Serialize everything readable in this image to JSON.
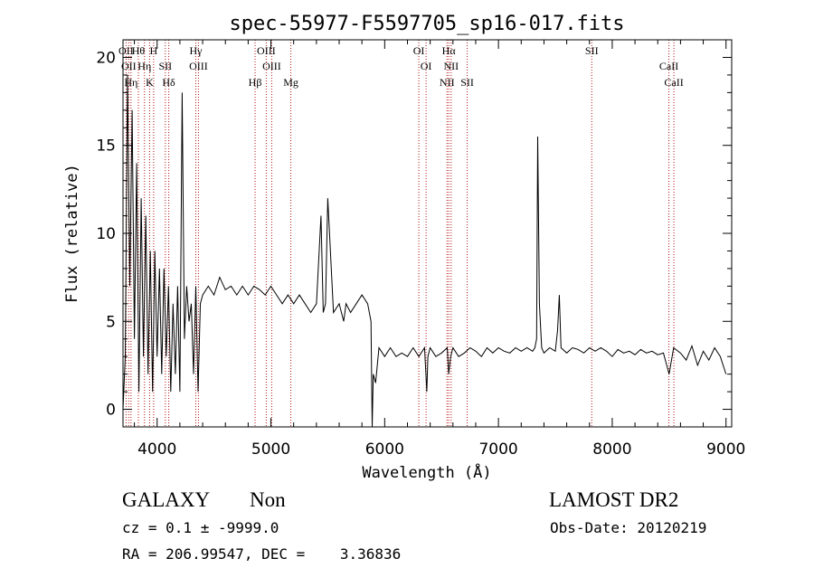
{
  "chart_data": {
    "type": "line",
    "title": "spec-55977-F5597705_sp16-017.fits",
    "xlabel": "Wavelength (Å)",
    "ylabel": "Flux (relative)",
    "xlim": [
      3700,
      9050
    ],
    "ylim": [
      -1,
      21
    ],
    "xticks": [
      4000,
      5000,
      6000,
      7000,
      8000,
      9000
    ],
    "yticks": [
      0,
      5,
      10,
      15,
      20
    ],
    "grid": false,
    "series": [
      {
        "x": [
          3700,
          3720,
          3740,
          3760,
          3780,
          3800,
          3820,
          3840,
          3860,
          3880,
          3900,
          3920,
          3940,
          3960,
          3980,
          4000,
          4020,
          4040,
          4060,
          4080,
          4100,
          4120,
          4140,
          4160,
          4180,
          4200,
          4220,
          4240,
          4260,
          4280,
          4300,
          4320,
          4340,
          4360,
          4380,
          4400,
          4450,
          4500,
          4550,
          4600,
          4650,
          4700,
          4750,
          4800,
          4850,
          4900,
          4950,
          5000,
          5050,
          5100,
          5150,
          5200,
          5250,
          5300,
          5350,
          5400,
          5440,
          5460,
          5480,
          5500,
          5550,
          5600,
          5620,
          5640,
          5660,
          5700,
          5750,
          5800,
          5850,
          5880,
          5890,
          5900,
          5920,
          5950,
          6000,
          6050,
          6100,
          6150,
          6200,
          6250,
          6300,
          6350,
          6370,
          6380,
          6400,
          6450,
          6500,
          6550,
          6563,
          6580,
          6600,
          6650,
          6700,
          6750,
          6800,
          6850,
          6900,
          6950,
          7000,
          7050,
          7100,
          7150,
          7200,
          7250,
          7300,
          7320,
          7335,
          7345,
          7360,
          7380,
          7400,
          7450,
          7500,
          7520,
          7535,
          7550,
          7600,
          7650,
          7700,
          7750,
          7800,
          7850,
          7900,
          7950,
          8000,
          8050,
          8100,
          8150,
          8200,
          8250,
          8300,
          8350,
          8400,
          8450,
          8500,
          8540,
          8600,
          8650,
          8700,
          8750,
          8800,
          8850,
          8900,
          8950,
          9000
        ],
        "y": [
          0,
          3,
          19,
          7,
          17,
          4,
          14,
          1,
          12,
          3,
          11,
          2,
          9,
          1,
          9,
          3,
          8,
          2,
          8,
          3,
          7,
          1,
          6,
          2,
          7,
          1,
          18,
          4,
          7,
          5,
          6,
          2,
          7,
          1,
          6,
          6.5,
          7,
          6.5,
          7.5,
          6.8,
          7,
          6.5,
          7,
          6.5,
          7,
          6.8,
          6.5,
          7,
          6.5,
          6,
          6.5,
          6,
          6.5,
          6,
          5.5,
          6,
          11,
          5.5,
          6,
          12,
          5.5,
          6,
          5.5,
          5,
          6,
          5.5,
          6,
          6.5,
          6,
          5,
          -1,
          2,
          1.5,
          3.5,
          3,
          3.5,
          3,
          3.2,
          3,
          3.5,
          3,
          3.5,
          1,
          3,
          3.5,
          3,
          3.2,
          3.5,
          2,
          3,
          3.5,
          3,
          3.2,
          3.5,
          3.3,
          3,
          3.5,
          3.2,
          3.5,
          3.3,
          3.2,
          3.5,
          3.3,
          3.5,
          3.3,
          3.5,
          4,
          15.5,
          6,
          3.5,
          3.2,
          3.5,
          3.3,
          4.5,
          6.5,
          3.5,
          3.2,
          3.5,
          3.4,
          3.2,
          3.5,
          3.3,
          3.5,
          3.3,
          3,
          3.4,
          3.2,
          3.3,
          3.1,
          3.4,
          3.2,
          3.3,
          3.1,
          3.2,
          2,
          3.5,
          3.2,
          2.8,
          3.6,
          2.5,
          3.3,
          2.8,
          3.5,
          3,
          2
        ]
      }
    ],
    "lines": [
      {
        "wavelength": 3727,
        "labels": [
          "OII"
        ]
      },
      {
        "wavelength": 3750,
        "labels": [
          "OII"
        ]
      },
      {
        "wavelength": 3770,
        "labels": [
          "Hη"
        ]
      },
      {
        "wavelength": 3835,
        "labels": [
          "Hθ"
        ]
      },
      {
        "wavelength": 3889,
        "labels": [
          "Hη"
        ]
      },
      {
        "wavelength": 3934,
        "labels": [
          "K"
        ]
      },
      {
        "wavelength": 3969,
        "labels": [
          "H"
        ]
      },
      {
        "wavelength": 4072,
        "labels": [
          "SII"
        ]
      },
      {
        "wavelength": 4102,
        "labels": [
          "Hδ"
        ]
      },
      {
        "wavelength": 4340,
        "labels": [
          "Hγ"
        ]
      },
      {
        "wavelength": 4363,
        "labels": [
          "OIII"
        ]
      },
      {
        "wavelength": 4861,
        "labels": [
          "Hβ"
        ]
      },
      {
        "wavelength": 4959,
        "labels": [
          "OIII"
        ]
      },
      {
        "wavelength": 5007,
        "labels": [
          "OIII"
        ]
      },
      {
        "wavelength": 5175,
        "labels": [
          "Mg"
        ]
      },
      {
        "wavelength": 6300,
        "labels": [
          "OI"
        ]
      },
      {
        "wavelength": 6364,
        "labels": [
          "OI"
        ]
      },
      {
        "wavelength": 6548,
        "labels": [
          "NII"
        ]
      },
      {
        "wavelength": 6563,
        "labels": [
          "Hα"
        ]
      },
      {
        "wavelength": 6584,
        "labels": [
          "NII"
        ]
      },
      {
        "wavelength": 6725,
        "labels": [
          "SII"
        ]
      },
      {
        "wavelength": 7820,
        "labels": [
          "SII"
        ]
      },
      {
        "wavelength": 8498,
        "labels": [
          "CaII"
        ]
      },
      {
        "wavelength": 8542,
        "labels": [
          "CaII"
        ]
      }
    ]
  },
  "footer": {
    "object_class": "GALAXY",
    "subclass": "Non",
    "survey": "LAMOST DR2",
    "cz": "cz = 0.1 ± -9999.0",
    "obs_date": "Obs-Date: 20120219",
    "radec": "RA = 206.99547, DEC =    3.36836"
  },
  "colors": {
    "line_marker": "#b01010",
    "spectrum": "#000000"
  }
}
